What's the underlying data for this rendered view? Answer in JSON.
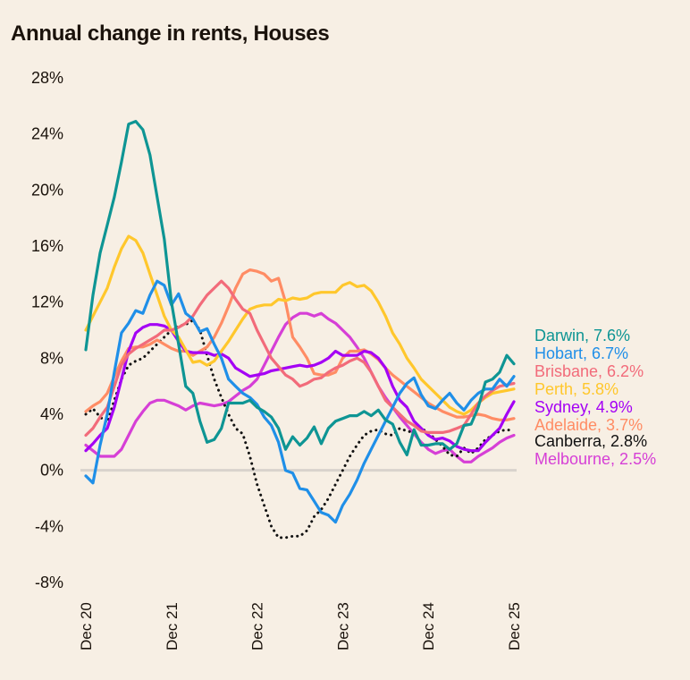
{
  "chart_data": {
    "type": "line",
    "title": "Annual change in rents, Houses",
    "xlabel": "",
    "ylabel": "",
    "ylim": [
      -8,
      28
    ],
    "yticks": [
      28,
      24,
      20,
      16,
      12,
      8,
      4,
      0,
      -4,
      -8
    ],
    "ytick_labels": [
      "28%",
      "24%",
      "20%",
      "16%",
      "12%",
      "8%",
      "4%",
      "0%",
      "-4%",
      "-8%"
    ],
    "xticks": [
      "Dec 20",
      "Dec 21",
      "Dec 22",
      "Dec 23",
      "Dec 24",
      "Dec 25"
    ],
    "x_start": "Dec 20",
    "x_end": "Dec 25",
    "frequency": "monthly",
    "zero_line": true,
    "grid": false,
    "legend_position": "right (end-of-line labels)",
    "series": [
      {
        "name": "Darwin",
        "label": "Darwin, 7.6%",
        "color": "#0e9594",
        "style": "solid",
        "values": [
          8.6,
          12.5,
          15.5,
          17.5,
          19.5,
          22,
          24.7,
          24.9,
          24.3,
          22.5,
          19.5,
          16.5,
          12,
          9,
          6,
          5.5,
          3.5,
          2,
          2.2,
          3,
          4.8,
          4.8,
          4.8,
          5,
          4.5,
          4.2,
          3.8,
          3,
          1.5,
          2.4,
          1.8,
          2.3,
          3.1,
          1.9,
          3,
          3.5,
          3.7,
          3.9,
          3.9,
          4.2,
          3.9,
          4.3,
          3.6,
          3.3,
          2,
          1.1,
          2.9,
          1.8,
          1.8,
          1.9,
          1.9,
          1.5,
          1.9,
          3.2,
          3.3,
          4.5,
          6.3,
          6.5,
          7,
          8.2,
          7.6
        ]
      },
      {
        "name": "Hobart",
        "label": "Hobart, 6.7%",
        "color": "#1f8fe8",
        "style": "solid",
        "values": [
          -0.4,
          -0.9,
          1.8,
          4,
          7,
          9.8,
          10.5,
          11.4,
          11.2,
          12.5,
          13.5,
          13.2,
          11.8,
          12.6,
          11.2,
          10.8,
          9.9,
          10.1,
          9,
          8,
          6.5,
          6,
          5.5,
          5.2,
          4.7,
          3.8,
          3.2,
          2,
          0,
          -0.2,
          -1.3,
          -1.4,
          -2.2,
          -3,
          -3.2,
          -3.7,
          -2.5,
          -1.7,
          -0.7,
          0.5,
          1.5,
          2.5,
          3.5,
          4.5,
          5.5,
          6.2,
          6.6,
          5.4,
          4.6,
          4.4,
          5,
          5.5,
          4.8,
          4.3,
          5,
          5.5,
          5.8,
          5.8,
          6.5,
          6,
          6.7
        ]
      },
      {
        "name": "Brisbane",
        "label": "Brisbane, 6.2%",
        "color": "#f26b7a",
        "style": "solid",
        "values": [
          2.5,
          3,
          3.8,
          4.5,
          6,
          7.5,
          8.3,
          8.7,
          9,
          9.3,
          9.6,
          10,
          10,
          10.2,
          10.5,
          11,
          11.8,
          12.5,
          13,
          13.5,
          13,
          12.2,
          11.5,
          11.2,
          10,
          9,
          8,
          7.4,
          6.8,
          6.5,
          6,
          6.2,
          6.5,
          6.6,
          7,
          7.3,
          7.5,
          7.8,
          8,
          7.7,
          7,
          6,
          5,
          4.5,
          4,
          3.5,
          3.2,
          2.8,
          2.7,
          2.7,
          2.7,
          2.8,
          3,
          3.2,
          4,
          4.8,
          5.3,
          5.7,
          6,
          6.1,
          6.2
        ]
      },
      {
        "name": "Perth",
        "label": "Perth, 5.8%",
        "color": "#ffc72c",
        "style": "solid",
        "values": [
          10,
          11,
          12,
          13,
          14.5,
          15.8,
          16.7,
          16.4,
          15.5,
          14,
          12.5,
          11,
          10,
          9.5,
          8.6,
          7.7,
          7.8,
          7.5,
          7.8,
          8.5,
          9.2,
          10,
          10.8,
          11.5,
          11.7,
          11.8,
          11.8,
          12.2,
          12.1,
          12.3,
          12.2,
          12.3,
          12.6,
          12.7,
          12.7,
          12.7,
          13.2,
          13.4,
          13.1,
          13.2,
          12.8,
          12,
          11,
          9.8,
          9,
          8,
          7.3,
          6.5,
          6,
          5.5,
          5,
          4.5,
          4.2,
          4,
          4.3,
          4.8,
          5.2,
          5.5,
          5.6,
          5.7,
          5.8
        ]
      },
      {
        "name": "Sydney",
        "label": "Sydney, 4.9%",
        "color": "#a400f5",
        "style": "solid",
        "values": [
          1.4,
          1.9,
          2.5,
          3,
          4.5,
          6.5,
          8.5,
          9.8,
          10.2,
          10.4,
          10.4,
          10.3,
          10,
          9.2,
          8.5,
          8.4,
          8.4,
          8.4,
          8.2,
          8.3,
          8,
          7.3,
          7,
          6.7,
          6.8,
          6.9,
          7.1,
          7.2,
          7.3,
          7.4,
          7.5,
          7.4,
          7.5,
          7.7,
          8,
          8.5,
          8.2,
          8.2,
          8.2,
          8.5,
          8.4,
          8,
          7.3,
          6,
          5,
          4.5,
          3.5,
          3,
          2.5,
          2.2,
          2.3,
          2.1,
          1.7,
          1.5,
          1.4,
          1.4,
          2,
          2.5,
          3,
          4,
          4.9
        ]
      },
      {
        "name": "Adelaide",
        "label": "Adelaide, 3.7%",
        "color": "#ff8c64",
        "style": "solid",
        "values": [
          4.2,
          4.6,
          4.9,
          5.5,
          6.7,
          7.8,
          8.7,
          8.8,
          8.8,
          9,
          9.3,
          9,
          8.7,
          8.5,
          8.5,
          8.2,
          8.5,
          8.8,
          9.5,
          10.5,
          11.7,
          13,
          14,
          14.3,
          14.2,
          14,
          13.5,
          13.7,
          12,
          9.5,
          8.8,
          8,
          6.9,
          6.8,
          6.8,
          7,
          8,
          8.5,
          8.5,
          8.6,
          8.3,
          7.9,
          7.3,
          6.8,
          6.4,
          6,
          5.6,
          5.2,
          4.8,
          4.5,
          4.2,
          4,
          3.8,
          3.8,
          3.9,
          4,
          3.9,
          3.7,
          3.6,
          3.6,
          3.7
        ]
      },
      {
        "name": "Canberra",
        "label": "Canberra, 2.8%",
        "color": "#111111",
        "style": "dotted",
        "values": [
          4,
          4.4,
          3.8,
          3.4,
          5,
          6.5,
          7.5,
          7.8,
          8,
          8.5,
          9,
          9.5,
          10,
          10.3,
          10.4,
          10.7,
          10,
          8.2,
          6.5,
          5.2,
          4,
          3,
          2.6,
          1,
          -1,
          -2.5,
          -4,
          -4.8,
          -4.8,
          -4.7,
          -4.7,
          -4.3,
          -3.3,
          -2.8,
          -2,
          -1,
          0,
          1,
          1.8,
          2.5,
          2.8,
          2.9,
          2.6,
          2.5,
          3,
          2.8,
          2.7,
          3,
          2.7,
          2.2,
          1.7,
          1.1,
          1,
          1.6,
          1.2,
          1.6,
          2.2,
          2.5,
          2.8,
          2.9,
          2.8
        ]
      },
      {
        "name": "Melbourne",
        "label": "Melbourne, 2.5%",
        "color": "#d63fd6",
        "style": "solid",
        "values": [
          1.8,
          1.4,
          1,
          1,
          1,
          1.5,
          2.5,
          3.5,
          4.2,
          4.8,
          5,
          5,
          4.8,
          4.6,
          4.3,
          4.6,
          4.8,
          4.7,
          4.6,
          4.7,
          4.9,
          5.3,
          5.7,
          6,
          6.5,
          7.5,
          8.5,
          9.5,
          10.4,
          10.9,
          11.2,
          11.2,
          11,
          11.2,
          10.8,
          10.5,
          10,
          9.5,
          8.8,
          8,
          7,
          6,
          5.2,
          4.5,
          3.8,
          3.2,
          2.6,
          2,
          1.5,
          1.2,
          1.4,
          1.5,
          1,
          0.6,
          0.6,
          1,
          1.3,
          1.6,
          2,
          2.3,
          2.5
        ]
      }
    ]
  }
}
